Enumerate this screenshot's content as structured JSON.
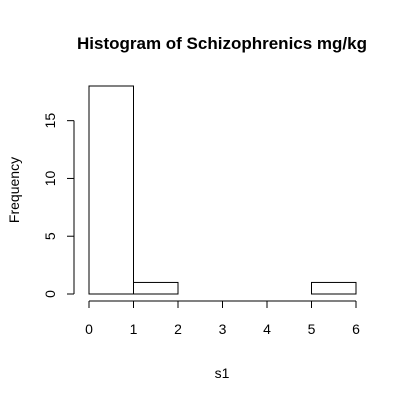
{
  "chart_data": {
    "type": "bar",
    "title": "Histogram of Schizophrenics mg/kg",
    "xlabel": "s1",
    "ylabel": "Frequency",
    "bins": [
      {
        "start": 0,
        "end": 1,
        "count": 18
      },
      {
        "start": 1,
        "end": 2,
        "count": 1
      },
      {
        "start": 2,
        "end": 3,
        "count": 0
      },
      {
        "start": 3,
        "end": 4,
        "count": 0
      },
      {
        "start": 4,
        "end": 5,
        "count": 0
      },
      {
        "start": 5,
        "end": 6,
        "count": 1
      }
    ],
    "xlim": [
      0,
      6
    ],
    "ylim": [
      0,
      18
    ],
    "x_ticks": [
      0,
      1,
      2,
      3,
      4,
      5,
      6
    ],
    "y_ticks": [
      0,
      5,
      10,
      15
    ],
    "grid": false,
    "legend": "none"
  }
}
